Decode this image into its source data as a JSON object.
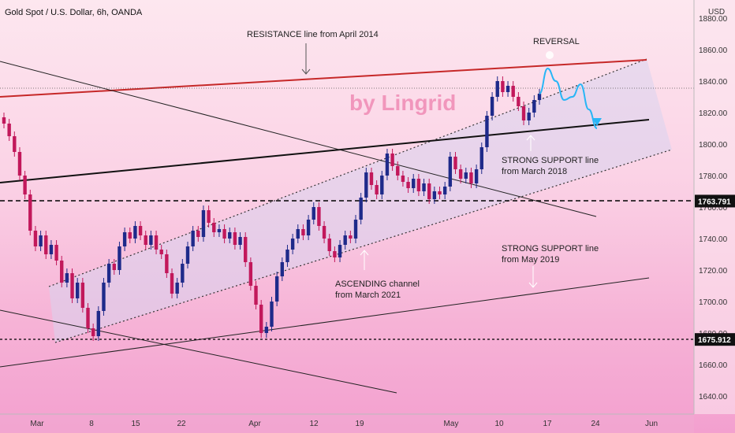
{
  "header": {
    "title": "Gold Spot / U.S. Dollar, 6h, OANDA"
  },
  "watermark": "by Lingrid",
  "colors": {
    "up": "#1e2a8a",
    "down": "#c2185b",
    "resistance": "#c62828",
    "projection": "#29b6f6",
    "channel_fill": "#d8d4ee"
  },
  "chart_data": {
    "type": "candlestick",
    "title": "Gold Spot / U.S. Dollar, 6h, OANDA",
    "ylabel": "USD",
    "ylim": [
      1625,
      1890
    ],
    "x_ticks": [
      "Mar",
      "8",
      "15",
      "22",
      "Apr",
      "12",
      "19",
      "May",
      "10",
      "17",
      "24",
      "Jun"
    ],
    "y_ticks": [
      1640,
      1660,
      1680,
      1700,
      1720,
      1740,
      1760,
      1780,
      1800,
      1820,
      1840,
      1860,
      1880
    ],
    "price_markers": [
      {
        "label": "1763.791",
        "value": 1763.791
      },
      {
        "label": "1675.912",
        "value": 1675.912
      }
    ],
    "series_path": [
      [
        1817,
        1813
      ],
      [
        1813,
        1805
      ],
      [
        1805,
        1795
      ],
      [
        1795,
        1780
      ],
      [
        1780,
        1768
      ],
      [
        1768,
        1745
      ],
      [
        1745,
        1735
      ],
      [
        1735,
        1742
      ],
      [
        1742,
        1730
      ],
      [
        1730,
        1736
      ],
      [
        1736,
        1726
      ],
      [
        1726,
        1712
      ],
      [
        1712,
        1718
      ],
      [
        1718,
        1702
      ],
      [
        1702,
        1712
      ],
      [
        1712,
        1696
      ],
      [
        1696,
        1683
      ],
      [
        1683,
        1678
      ],
      [
        1678,
        1694
      ],
      [
        1694,
        1712
      ],
      [
        1712,
        1724
      ],
      [
        1724,
        1720
      ],
      [
        1720,
        1735
      ],
      [
        1735,
        1744
      ],
      [
        1744,
        1740
      ],
      [
        1740,
        1748
      ],
      [
        1748,
        1742
      ],
      [
        1742,
        1736
      ],
      [
        1736,
        1742
      ],
      [
        1742,
        1733
      ],
      [
        1733,
        1730
      ],
      [
        1730,
        1718
      ],
      [
        1718,
        1705
      ],
      [
        1705,
        1712
      ],
      [
        1712,
        1724
      ],
      [
        1724,
        1735
      ],
      [
        1735,
        1745
      ],
      [
        1745,
        1741
      ],
      [
        1741,
        1758
      ],
      [
        1758,
        1750
      ],
      [
        1750,
        1744
      ],
      [
        1744,
        1746
      ],
      [
        1746,
        1740
      ],
      [
        1740,
        1744
      ],
      [
        1744,
        1736
      ],
      [
        1736,
        1741
      ],
      [
        1741,
        1725
      ],
      [
        1725,
        1710
      ],
      [
        1710,
        1698
      ],
      [
        1698,
        1680
      ],
      [
        1680,
        1684
      ],
      [
        1684,
        1700
      ],
      [
        1700,
        1716
      ],
      [
        1716,
        1725
      ],
      [
        1725,
        1733
      ],
      [
        1733,
        1740
      ],
      [
        1740,
        1746
      ],
      [
        1746,
        1742
      ],
      [
        1742,
        1752
      ],
      [
        1752,
        1760
      ],
      [
        1760,
        1748
      ],
      [
        1748,
        1740
      ],
      [
        1740,
        1732
      ],
      [
        1732,
        1728
      ],
      [
        1728,
        1736
      ],
      [
        1736,
        1742
      ],
      [
        1742,
        1740
      ],
      [
        1740,
        1752
      ],
      [
        1752,
        1766
      ],
      [
        1766,
        1782
      ],
      [
        1782,
        1774
      ],
      [
        1774,
        1768
      ],
      [
        1768,
        1780
      ],
      [
        1780,
        1794
      ],
      [
        1794,
        1786
      ],
      [
        1786,
        1780
      ],
      [
        1780,
        1776
      ],
      [
        1776,
        1772
      ],
      [
        1772,
        1778
      ],
      [
        1778,
        1770
      ],
      [
        1770,
        1775
      ],
      [
        1775,
        1765
      ],
      [
        1765,
        1770
      ],
      [
        1770,
        1768
      ],
      [
        1768,
        1773
      ],
      [
        1773,
        1792
      ],
      [
        1792,
        1784
      ],
      [
        1784,
        1778
      ],
      [
        1778,
        1782
      ],
      [
        1782,
        1775
      ],
      [
        1775,
        1784
      ],
      [
        1784,
        1798
      ],
      [
        1798,
        1818
      ],
      [
        1818,
        1830
      ],
      [
        1830,
        1840
      ],
      [
        1840,
        1833
      ],
      [
        1833,
        1837
      ],
      [
        1837,
        1830
      ],
      [
        1830,
        1824
      ],
      [
        1824,
        1815
      ],
      [
        1815,
        1820
      ],
      [
        1820,
        1828
      ],
      [
        1828,
        1832
      ]
    ],
    "projection": [
      1832,
      1848,
      1840,
      1828,
      1830,
      1838,
      1822,
      1810
    ],
    "annotations": [
      {
        "text": "RESISTANCE line from April 2014"
      },
      {
        "text": "REVERSAL"
      },
      {
        "text": "STRONG SUPPORT line"
      },
      {
        "text": "from March 2018"
      },
      {
        "text": "STRONG SUPPORT line"
      },
      {
        "text": "from May 2019"
      },
      {
        "text": "ASCENDING channel"
      },
      {
        "text": "from March 2021"
      }
    ]
  }
}
